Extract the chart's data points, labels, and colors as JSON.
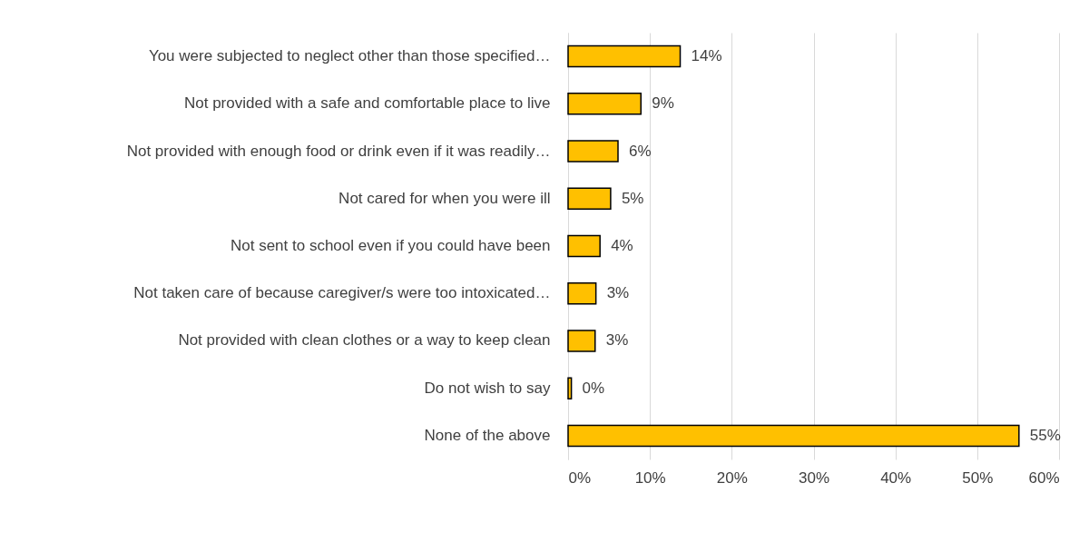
{
  "chart_data": {
    "type": "bar",
    "orientation": "horizontal",
    "categories": [
      "You were subjected to neglect other than those specified…",
      "Not provided with a safe and comfortable place to live",
      "Not provided with enough food or drink even if it was readily…",
      "Not cared for when you were ill",
      "Not sent to school even if you could have been",
      "Not taken care of because caregiver/s were too intoxicated…",
      "Not provided with clean clothes or a way to keep clean",
      "Do not wish to say",
      "None of the above"
    ],
    "values": [
      13.7,
      8.9,
      6.1,
      5.2,
      3.9,
      3.4,
      3.3,
      0.4,
      55.1
    ],
    "value_labels": [
      "14%",
      "9%",
      "6%",
      "5%",
      "4%",
      "3%",
      "3%",
      "0%",
      "55%"
    ],
    "color": "#ffc000",
    "xlim": [
      0,
      60
    ],
    "xticks": [
      {
        "value": 0,
        "label": "0%"
      },
      {
        "value": 10,
        "label": "10%"
      },
      {
        "value": 20,
        "label": "20%"
      },
      {
        "value": 30,
        "label": "30%"
      },
      {
        "value": 40,
        "label": "40%"
      },
      {
        "value": 50,
        "label": "50%"
      },
      {
        "value": 60,
        "label": "60%"
      }
    ],
    "grid": "x"
  }
}
